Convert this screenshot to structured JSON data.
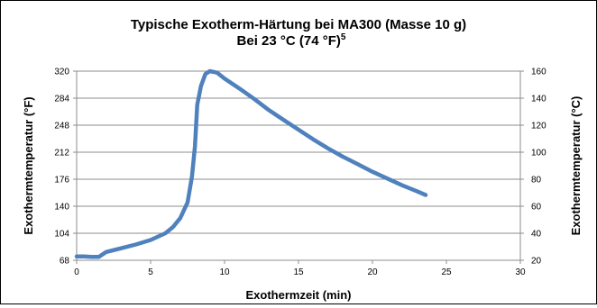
{
  "chart_data": {
    "type": "line",
    "title_line1": "Typische Exotherm-Härtung bei MA300 (Masse 10 g)",
    "title_line2": "Bei 23 °C (74 °F)",
    "title_sup": "5",
    "xlabel": "Exothermzeit (min)",
    "ylabel_left": "Exothermtemperatur (°F)",
    "ylabel_right": "Exothermtemperatur (°C)",
    "xlim": [
      0,
      30
    ],
    "ylim_left": [
      68,
      320
    ],
    "ylim_right": [
      20,
      160
    ],
    "x_ticks": [
      "0",
      "5",
      "10",
      "15",
      "20",
      "25",
      "30"
    ],
    "y_ticks_left": [
      "68",
      "104",
      "140",
      "176",
      "212",
      "248",
      "284",
      "320"
    ],
    "y_ticks_right": [
      "20",
      "40",
      "60",
      "80",
      "100",
      "120",
      "140",
      "160"
    ],
    "grid": "horizontal",
    "legend": "none",
    "series": [
      {
        "color": "#4f81bd",
        "points": [
          [
            0,
            73
          ],
          [
            0.5,
            73
          ],
          [
            1,
            72.5
          ],
          [
            1.5,
            72.5
          ],
          [
            2,
            79
          ],
          [
            3,
            84
          ],
          [
            4,
            89
          ],
          [
            5,
            95
          ],
          [
            6,
            104
          ],
          [
            6.5,
            112
          ],
          [
            7,
            124
          ],
          [
            7.5,
            145
          ],
          [
            7.8,
            180
          ],
          [
            8.0,
            220
          ],
          [
            8.15,
            275
          ],
          [
            8.4,
            300
          ],
          [
            8.7,
            316
          ],
          [
            9,
            320
          ],
          [
            9.5,
            318
          ],
          [
            10,
            310
          ],
          [
            11,
            297
          ],
          [
            12,
            283
          ],
          [
            13,
            268
          ],
          [
            14,
            255
          ],
          [
            15,
            242
          ],
          [
            16,
            229
          ],
          [
            17,
            217
          ],
          [
            18,
            206
          ],
          [
            19,
            196
          ],
          [
            20,
            186
          ],
          [
            21,
            177
          ],
          [
            22,
            168
          ],
          [
            23,
            160
          ],
          [
            23.6,
            155
          ]
        ]
      }
    ]
  }
}
